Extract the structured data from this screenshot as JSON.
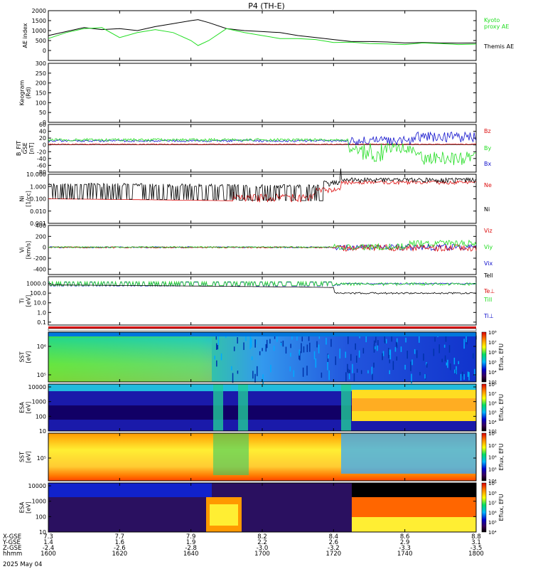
{
  "title": "P4 (TH-E)",
  "date_label": "2025 May 04",
  "colors": {
    "black": "#000000",
    "green": "#22dd22",
    "red": "#dd1111",
    "blue": "#1111cc"
  },
  "chart_data": [
    {
      "type": "line",
      "name": "ae-index",
      "ylabel": "AE index",
      "ylim": [
        -500,
        2000
      ],
      "yticks": [
        "2000",
        "1500",
        "1000",
        "500",
        "0"
      ],
      "yticks_values": [
        2000,
        1500,
        1000,
        500,
        0
      ],
      "x": [
        "16:00",
        "16:05",
        "16:10",
        "16:15",
        "16:20",
        "16:25",
        "16:30",
        "16:35",
        "16:40",
        "16:42",
        "16:45",
        "16:50",
        "16:55",
        "17:00",
        "17:05",
        "17:10",
        "17:15",
        "17:20",
        "17:25",
        "17:30",
        "17:35",
        "17:40",
        "17:45",
        "17:50",
        "17:55",
        "18:00"
      ],
      "series": [
        {
          "name": "Themis AE",
          "color": "black",
          "values": [
            750,
            950,
            1150,
            1050,
            1100,
            1000,
            1200,
            1350,
            1500,
            1550,
            1400,
            1100,
            1000,
            950,
            900,
            750,
            650,
            550,
            450,
            450,
            430,
            380,
            400,
            380,
            370,
            380
          ]
        },
        {
          "name": "Kyoto proxy AE",
          "color": "green",
          "values": [
            600,
            900,
            1100,
            1150,
            650,
            900,
            1050,
            900,
            500,
            250,
            500,
            1100,
            900,
            750,
            600,
            600,
            550,
            400,
            420,
            350,
            330,
            300,
            380,
            350,
            300,
            320
          ]
        }
      ],
      "legend": [
        {
          "text": "Kyoto",
          "color": "green"
        },
        {
          "text": "proxy AE",
          "color": "green"
        },
        {
          "text": "Themis AE",
          "color": "black"
        }
      ]
    },
    {
      "type": "line",
      "name": "keogram",
      "ylabel": "Keogram",
      "ylabel2": "(Rd)",
      "ylim": [
        0,
        300
      ],
      "yticks": [
        "300",
        "250",
        "200",
        "150",
        "100",
        "50",
        "0"
      ],
      "yticks_values": [
        300,
        250,
        200,
        150,
        100,
        50,
        0
      ]
    },
    {
      "type": "line",
      "name": "magnetic-field",
      "ylabel": "B_FIT",
      "ylabel2": "GSE",
      "ylabel3": "[nT]",
      "ylim": [
        -80,
        60
      ],
      "yticks": [
        "60",
        "40",
        "20",
        "0",
        "-20",
        "-40",
        "-60",
        "-80"
      ],
      "yticks_values": [
        60,
        40,
        20,
        0,
        -20,
        -40,
        -60,
        -80
      ],
      "legend": [
        {
          "text": "Bz",
          "color": "red"
        },
        {
          "text": "By",
          "color": "green"
        },
        {
          "text": "Bx",
          "color": "blue"
        }
      ]
    },
    {
      "type": "line",
      "name": "density",
      "ylabel": "Ni",
      "ylabel2": "[1/cc]",
      "scale": "log",
      "ylim": [
        0.001,
        10
      ],
      "yticks": [
        "10.000",
        "1.000",
        "0.100",
        "0.010",
        "0.001"
      ],
      "yticks_values": [
        10,
        1,
        0.1,
        0.01,
        0.001
      ],
      "legend": [
        {
          "text": "Ne",
          "color": "red"
        },
        {
          "text": "Ni",
          "color": "black"
        }
      ]
    },
    {
      "type": "line",
      "name": "velocity",
      "ylabel": "Vi",
      "ylabel2": "[km/s]",
      "ylim": [
        -500,
        400
      ],
      "yticks": [
        "400",
        "200",
        "0",
        "-200",
        "-400"
      ],
      "yticks_values": [
        400,
        200,
        0,
        -200,
        -400
      ],
      "legend": [
        {
          "text": "Viz",
          "color": "red"
        },
        {
          "text": "Viy",
          "color": "green"
        },
        {
          "text": "Vix",
          "color": "blue"
        }
      ]
    },
    {
      "type": "line",
      "name": "temperature",
      "ylabel": "Ti",
      "ylabel2": "[eV]",
      "scale": "log",
      "ylim": [
        0.05,
        5000
      ],
      "yticks": [
        "1000.0",
        "100.0",
        "10.0",
        "1.0",
        "0.1"
      ],
      "yticks_values": [
        1000,
        100,
        10,
        1,
        0.1
      ],
      "legend": [
        {
          "text": "Tell",
          "color": "black"
        },
        {
          "text": "Te⊥",
          "color": "red"
        },
        {
          "text": "Till",
          "color": "green"
        },
        {
          "text": "Ti⊥",
          "color": "blue"
        }
      ]
    },
    {
      "type": "heatmap",
      "name": "sst-ion",
      "ylabel": "SST",
      "ylabel2": "[eV]",
      "yticks": [
        "10⁶",
        "10⁵"
      ],
      "yticks_values": [
        1000000,
        100000
      ],
      "cbar_label": "Eflux, EFU",
      "cbar_ticks": [
        "10⁸",
        "10⁷",
        "10⁶",
        "10⁵",
        "10⁴",
        "10³"
      ]
    },
    {
      "type": "heatmap",
      "name": "esa-ion",
      "ylabel": "ESA",
      "ylabel2": "[eV]",
      "yticks": [
        "10000",
        "1000",
        "100",
        "10"
      ],
      "yticks_values": [
        10000,
        1000,
        100,
        10
      ],
      "cbar_label": "Eflux, EFU",
      "cbar_ticks": [
        "10⁸",
        "10⁷",
        "10⁶",
        "10⁵",
        "10⁴",
        "10³"
      ]
    },
    {
      "type": "heatmap",
      "name": "sst-electron",
      "ylabel": "SST",
      "ylabel2": "[eV]",
      "yticks": [
        "10⁵"
      ],
      "yticks_values": [
        100000
      ],
      "cbar_label": "Eflux, EFU",
      "cbar_ticks": [
        "10⁸",
        "10⁷",
        "10⁶",
        "10⁵",
        "10⁴"
      ]
    },
    {
      "type": "heatmap",
      "name": "esa-electron",
      "ylabel": "ESA",
      "ylabel2": "[eV]",
      "yticks": [
        "10000",
        "1000",
        "100",
        "10"
      ],
      "yticks_values": [
        10000,
        1000,
        100,
        10
      ],
      "cbar_label": "Eflux, EFU",
      "cbar_ticks": [
        "10⁹",
        "10⁸",
        "10⁷",
        "10⁶",
        "10⁵",
        "10⁴"
      ]
    }
  ],
  "xaxis": {
    "row_labels": [
      "X-GSE",
      "Y-GSE",
      "Z-GSE",
      "hhmm"
    ],
    "ticks": [
      {
        "x": "7.3",
        "y": "1.4",
        "z": "-2.4",
        "t": "1600"
      },
      {
        "x": "7.7",
        "y": "1.6",
        "z": "-2.6",
        "t": "1620"
      },
      {
        "x": "7.9",
        "y": "1.9",
        "z": "-2.8",
        "t": "1640"
      },
      {
        "x": "8.2",
        "y": "2.2",
        "z": "-3.0",
        "t": "1700"
      },
      {
        "x": "8.4",
        "y": "2.6",
        "z": "-3.2",
        "t": "1720"
      },
      {
        "x": "8.6",
        "y": "2.9",
        "z": "-3.3",
        "t": "1740"
      },
      {
        "x": "8.8",
        "y": "3.1",
        "z": "-3.5",
        "t": "1800"
      }
    ]
  }
}
